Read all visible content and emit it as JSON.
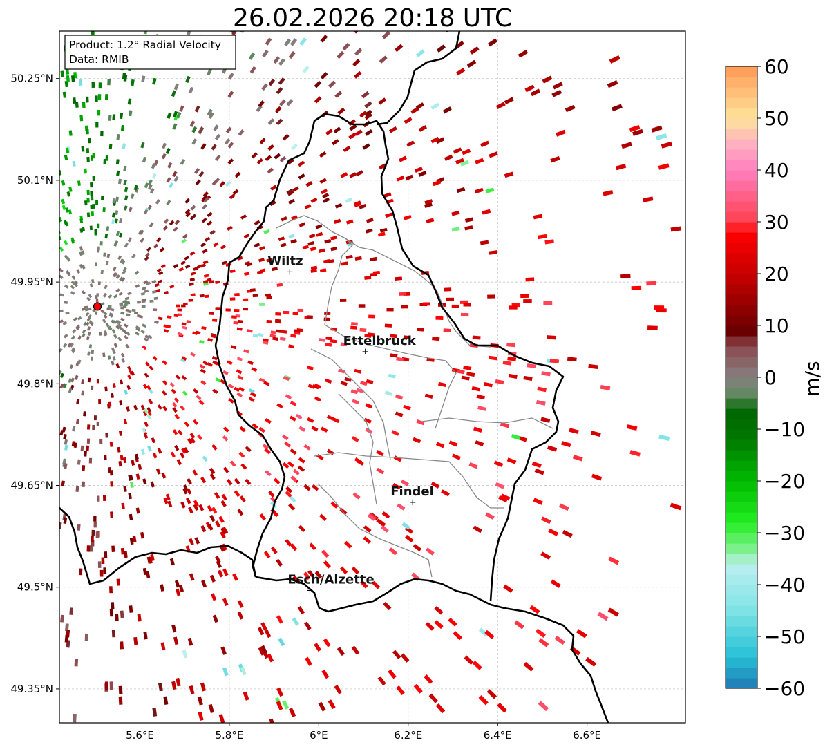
{
  "title": "26.02.2026 20:18 UTC",
  "info": {
    "product": "Product: 1.2° Radial Velocity",
    "data": "Data: RMIB"
  },
  "map_extent": {
    "lon": [
      5.42,
      6.82
    ],
    "lat": [
      49.3,
      50.32
    ]
  },
  "lat_ticks": [
    {
      "value": 50.25,
      "label": "50.25°N"
    },
    {
      "value": 50.1,
      "label": "50.1°N"
    },
    {
      "value": 49.95,
      "label": "49.95°N"
    },
    {
      "value": 49.8,
      "label": "49.8°N"
    },
    {
      "value": 49.65,
      "label": "49.65°N"
    },
    {
      "value": 49.5,
      "label": "49.5°N"
    },
    {
      "value": 49.35,
      "label": "49.35°N"
    }
  ],
  "lon_ticks": [
    {
      "value": 5.6,
      "label": "5.6°E"
    },
    {
      "value": 5.8,
      "label": "5.8°E"
    },
    {
      "value": 6.0,
      "label": "6°E"
    },
    {
      "value": 6.2,
      "label": "6.2°E"
    },
    {
      "value": 6.4,
      "label": "6.4°E"
    },
    {
      "value": 6.6,
      "label": "6.6°E"
    }
  ],
  "radar": {
    "lon": 5.505,
    "lat": 49.914
  },
  "cities": [
    {
      "name": "Wiltz",
      "lon": 5.935,
      "lat": 49.966
    },
    {
      "name": "Ettelbruck",
      "lon": 6.104,
      "lat": 49.848
    },
    {
      "name": "Findel",
      "lon": 6.21,
      "lat": 49.626
    },
    {
      "name": "Esch/Alzette",
      "lon": 5.98,
      "lat": 49.496
    }
  ],
  "colorbar": {
    "label": "m/s",
    "min": -60,
    "max": 60,
    "ticks": [
      {
        "value": 60,
        "label": "60"
      },
      {
        "value": 50,
        "label": "50"
      },
      {
        "value": 40,
        "label": "40"
      },
      {
        "value": 30,
        "label": "30"
      },
      {
        "value": 20,
        "label": "20"
      },
      {
        "value": 10,
        "label": "10"
      },
      {
        "value": 0,
        "label": "0"
      },
      {
        "value": -10,
        "label": "−10"
      },
      {
        "value": -20,
        "label": "−20"
      },
      {
        "value": -30,
        "label": "−30"
      },
      {
        "value": -40,
        "label": "−40"
      },
      {
        "value": -50,
        "label": "−50"
      },
      {
        "value": -60,
        "label": "−60"
      }
    ],
    "stops": [
      {
        "v": -60,
        "c": "#1f78b4"
      },
      {
        "v": -54,
        "c": "#25c0d6"
      },
      {
        "v": -45,
        "c": "#7fe3e6"
      },
      {
        "v": -36,
        "c": "#bdeff0"
      },
      {
        "v": -34,
        "c": "#8ef0a0"
      },
      {
        "v": -28,
        "c": "#22ee22"
      },
      {
        "v": -20,
        "c": "#00bb00"
      },
      {
        "v": -12,
        "c": "#007a00"
      },
      {
        "v": -6,
        "c": "#006400"
      },
      {
        "v": -4,
        "c": "#5a8a5a"
      },
      {
        "v": 0,
        "c": "#868080"
      },
      {
        "v": 6,
        "c": "#8c4a50"
      },
      {
        "v": 9,
        "c": "#6b0000"
      },
      {
        "v": 20,
        "c": "#c80000"
      },
      {
        "v": 28,
        "c": "#ff0000"
      },
      {
        "v": 30,
        "c": "#ff4050"
      },
      {
        "v": 40,
        "c": "#ff7fbf"
      },
      {
        "v": 45,
        "c": "#ffb0c0"
      },
      {
        "v": 50,
        "c": "#ffe39a"
      },
      {
        "v": 60,
        "c": "#ff9a55"
      }
    ]
  },
  "colors": {
    "border": "#000000",
    "inner_boundary": "#888888",
    "grid": "#bbbbbb",
    "radar_marker": "#ff0000"
  }
}
